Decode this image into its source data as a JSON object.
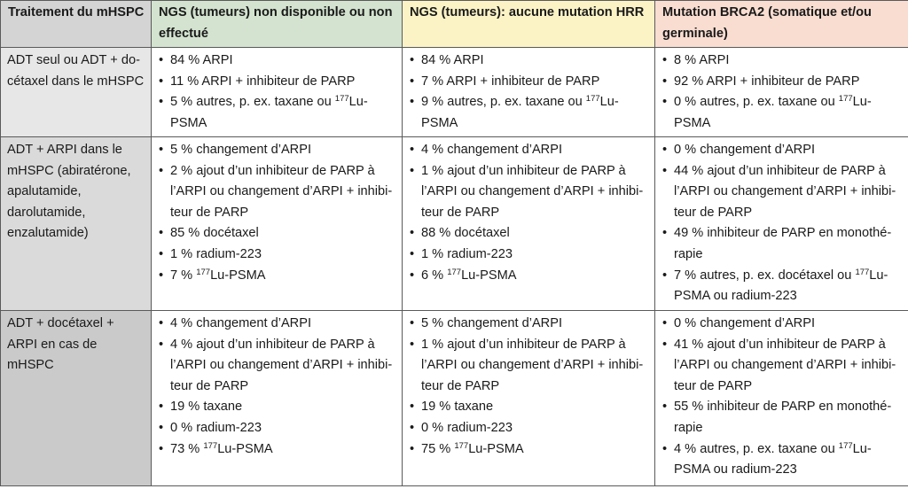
{
  "table": {
    "headers": [
      "Traitement du mHSPC",
      "NGS (tumeurs) non disponible ou non effectué",
      "NGS (tumeurs): aucune mutation HRR",
      "Mutation BRCA2 (somatique et/ou germinale)"
    ],
    "rows": [
      {
        "label": "ADT seul ou ADT + do­cétaxel dans le mHSPC",
        "cells": [
          [
            {
              "text": "84 % ARPI"
            },
            {
              "text": "11 % ARPI + inhibiteur de PARP"
            },
            {
              "pre": "5 % autres, p. ex. taxane ou ",
              "sup": "177",
              "post": "Lu-PSMA"
            }
          ],
          [
            {
              "text": "84 % ARPI"
            },
            {
              "text": "7 % ARPI + inhibiteur de PARP"
            },
            {
              "pre": "9 % autres, p. ex. taxane ou ",
              "sup": "177",
              "post": "Lu-PSMA"
            }
          ],
          [
            {
              "text": "8 % ARPI"
            },
            {
              "text": "92 % ARPI + inhibiteur de PARP"
            },
            {
              "pre": "0 % autres, p. ex. taxane ou ",
              "sup": "177",
              "post": "Lu-PSMA"
            }
          ]
        ]
      },
      {
        "label": "ADT + ARPI dans le mHSPC (abiratérone, apalutamide, darolutamide, enzalutamide)",
        "cells": [
          [
            {
              "text": "5 % changement d’ARPI"
            },
            {
              "text": "2 % ajout d’un inhibiteur de PARP à l’ARPI ou changement d’ARPI + inhibi­teur de PARP"
            },
            {
              "text": "85 % docétaxel"
            },
            {
              "text": "1 % radium-223"
            },
            {
              "pre": "7 % ",
              "sup": "177",
              "post": "Lu-PSMA"
            }
          ],
          [
            {
              "text": "4 % changement d’ARPI"
            },
            {
              "text": "1 % ajout d’un inhibiteur de PARP à l’ARPI ou changement d’ARPI + inhibi­teur de PARP"
            },
            {
              "text": "88 % docétaxel"
            },
            {
              "text": "1 % radium-223"
            },
            {
              "pre": "6 % ",
              "sup": "177",
              "post": "Lu-PSMA"
            }
          ],
          [
            {
              "text": "0 % changement d’ARPI"
            },
            {
              "text": "44 % ajout d’un inhibiteur de PARP à l’ARPI ou changement d’ARPI + inhibi­teur de PARP"
            },
            {
              "text": "49 % inhibiteur de PARP en monothé­rapie"
            },
            {
              "pre": "7 % autres, p. ex. docétaxel ou ",
              "sup": "177",
              "post": "Lu-PSMA ou radium-223"
            }
          ]
        ]
      },
      {
        "label": "ADT + docétaxel + ARPI en cas de mHSPC",
        "cells": [
          [
            {
              "text": "4 % changement d’ARPI"
            },
            {
              "text": "4 % ajout d’un inhibiteur de PARP à l’ARPI ou changement d’ARPI + inhibi­teur de PARP"
            },
            {
              "text": "19 % taxane"
            },
            {
              "text": "0 % radium-223"
            },
            {
              "pre": "73 % ",
              "sup": "177",
              "post": "Lu-PSMA"
            }
          ],
          [
            {
              "text": "5 % changement d’ARPI"
            },
            {
              "text": "1 % ajout d’un inhibiteur de PARP à l’ARPI ou changement d’ARPI + inhibi­teur de PARP"
            },
            {
              "text": "19 % taxane"
            },
            {
              "text": "0 % radium-223"
            },
            {
              "pre": "75 % ",
              "sup": "177",
              "post": "Lu-PSMA"
            }
          ],
          [
            {
              "text": "0 % changement d’ARPI"
            },
            {
              "text": "41 % ajout d’un inhibiteur de PARP à l’ARPI ou changement d’ARPI + inhibi­teur de PARP"
            },
            {
              "text": "55 % inhibiteur de PARP en monothé­rapie"
            },
            {
              "pre": "4 % autres, p. ex. taxane ou ",
              "sup": "177",
              "post": "Lu-PSMA ou radium-223"
            }
          ]
        ]
      }
    ]
  }
}
